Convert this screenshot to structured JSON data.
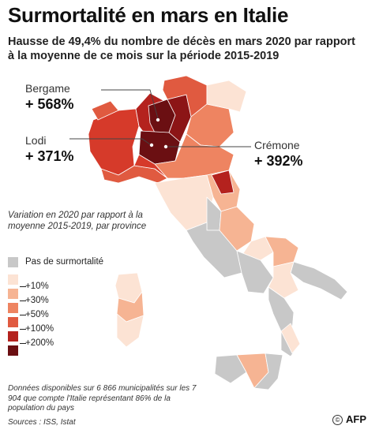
{
  "title": "Surmortalité en mars en Italie",
  "subtitle": "Hausse de 49,4% du nombre de décès en mars 2020 par rapport à la moyenne de ce mois sur la période 2015-2019",
  "callouts": {
    "bergame": {
      "name": "Bergame",
      "value": "+ 568%"
    },
    "lodi": {
      "name": "Lodi",
      "value": "+ 371%"
    },
    "cremone": {
      "name": "Crémone",
      "value": "+ 392%"
    }
  },
  "legend": {
    "title": "Variation en 2020 par rapport à la moyenne 2015-2019, par province",
    "items": [
      {
        "label": "Pas de surmortalité",
        "color": "#c8c8c8"
      },
      {
        "label": "",
        "color": "#fce3d4"
      },
      {
        "label": "+10%",
        "color": "#f6b493"
      },
      {
        "label": "+30%",
        "color": "#ee8461"
      },
      {
        "label": "+50%",
        "color": "#e05a40"
      },
      {
        "label": "+100%",
        "color": "#b4221e"
      },
      {
        "label": "+200%",
        "color": "#6b0f12"
      }
    ]
  },
  "note": "Données disponibles sur 6 866 municipalités sur les 7 904 que compte l'Italie représentant 86% de la population du pays",
  "sources": "Sources : ISS, Istat",
  "credit": "AFP",
  "credit_mark": "©"
}
